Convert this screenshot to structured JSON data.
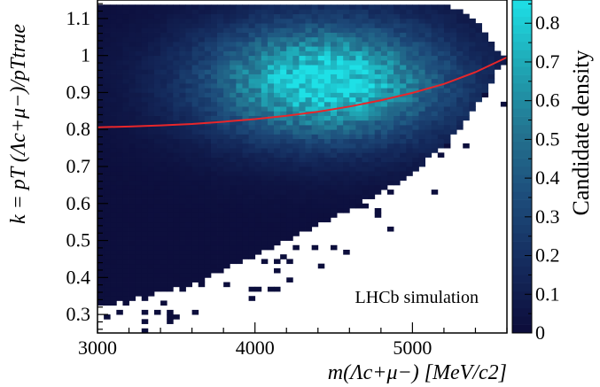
{
  "chart_data": {
    "type": "heatmap",
    "title": "",
    "xlabel": "m(Λc+μ−) [MeV/c2]",
    "ylabel": "k = pT (Λc+μ−)/pTtrue",
    "colorbar_label": "Candidate density",
    "annotation": "LHCb simulation",
    "xlim": [
      3000,
      5600
    ],
    "ylim": [
      0.25,
      1.15
    ],
    "zlim": [
      0,
      0.86
    ],
    "x_ticks": [
      3000,
      4000,
      5000
    ],
    "y_ticks": [
      0.3,
      0.4,
      0.5,
      0.6,
      0.7,
      0.8,
      0.9,
      1,
      1.1
    ],
    "z_ticks": [
      0,
      0.1,
      0.2,
      0.3,
      0.4,
      0.5,
      0.6,
      0.7,
      0.8
    ],
    "bins": {
      "x_bin_width": 40,
      "y_bin_width": 0.0125
    },
    "density_model": {
      "peak_center": [
        4450,
        0.93
      ],
      "peak_value": 0.85,
      "lower_edge": [
        [
          3000,
          0.32
        ],
        [
          3600,
          0.38
        ],
        [
          4000,
          0.46
        ],
        [
          4500,
          0.56
        ],
        [
          5000,
          0.68
        ],
        [
          5300,
          0.8
        ],
        [
          5560,
          0.97
        ]
      ],
      "upper_edge": [
        [
          3000,
          1.14
        ],
        [
          5200,
          1.14
        ],
        [
          5400,
          1.1
        ],
        [
          5560,
          1.0
        ]
      ]
    },
    "series": [
      {
        "type": "line",
        "color": "#e8262a",
        "x": [
          3000,
          3200,
          3400,
          3600,
          3800,
          4000,
          4200,
          4400,
          4600,
          4800,
          5000,
          5200,
          5400,
          5600
        ],
        "y": [
          0.806,
          0.808,
          0.811,
          0.815,
          0.821,
          0.828,
          0.837,
          0.848,
          0.862,
          0.879,
          0.899,
          0.923,
          0.955,
          0.995
        ]
      }
    ],
    "colormap": "deep-navy-to-cyan",
    "colormap_stops": [
      "#0c0c3a",
      "#142a5c",
      "#1d4b7a",
      "#23728f",
      "#1fa6b4",
      "#1ee0e6"
    ],
    "grid": false
  }
}
